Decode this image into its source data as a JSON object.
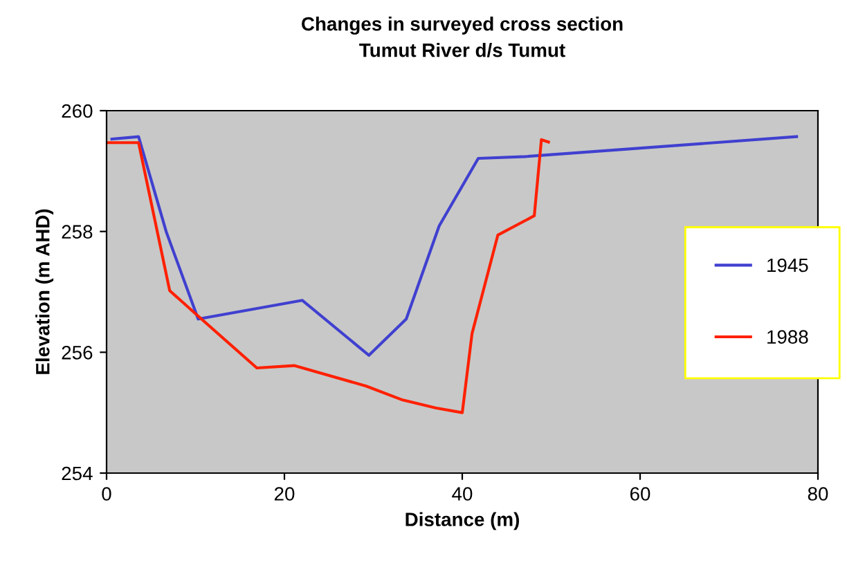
{
  "chart_data": {
    "type": "line",
    "title": "Changes in surveyed cross section\nTumut River d/s Tumut",
    "xlabel": "Distance (m)",
    "ylabel": "Elevation (m AHD)",
    "xlim": [
      0,
      80
    ],
    "xticks": [
      0,
      20,
      40,
      60,
      80
    ],
    "ylim": [
      254,
      260
    ],
    "yticks": [
      254,
      256,
      258,
      260
    ],
    "grid": false,
    "legend": "right",
    "marker": "none",
    "line_style": "solid",
    "series": [
      {
        "name": "1945",
        "color": "#4040d0",
        "x": [
          0.6,
          3.6,
          6.7,
          10.3,
          22.0,
          29.5,
          33.7,
          37.4,
          41.8,
          47.1,
          77.6
        ],
        "values": [
          259.53,
          259.57,
          258.0,
          256.55,
          256.86,
          255.95,
          256.55,
          258.09,
          259.21,
          259.24,
          259.57
        ]
      },
      {
        "name": "1988",
        "color": "#ff2000",
        "x": [
          0.1,
          3.6,
          7.1,
          10.3,
          16.9,
          21.1,
          29.2,
          33.3,
          37.0,
          40.0,
          41.1,
          44.0,
          48.1,
          48.9,
          49.7
        ],
        "values": [
          259.47,
          259.47,
          257.02,
          256.6,
          255.74,
          255.78,
          255.44,
          255.21,
          255.08,
          255.0,
          256.31,
          257.94,
          258.26,
          259.52,
          259.48
        ]
      }
    ]
  }
}
